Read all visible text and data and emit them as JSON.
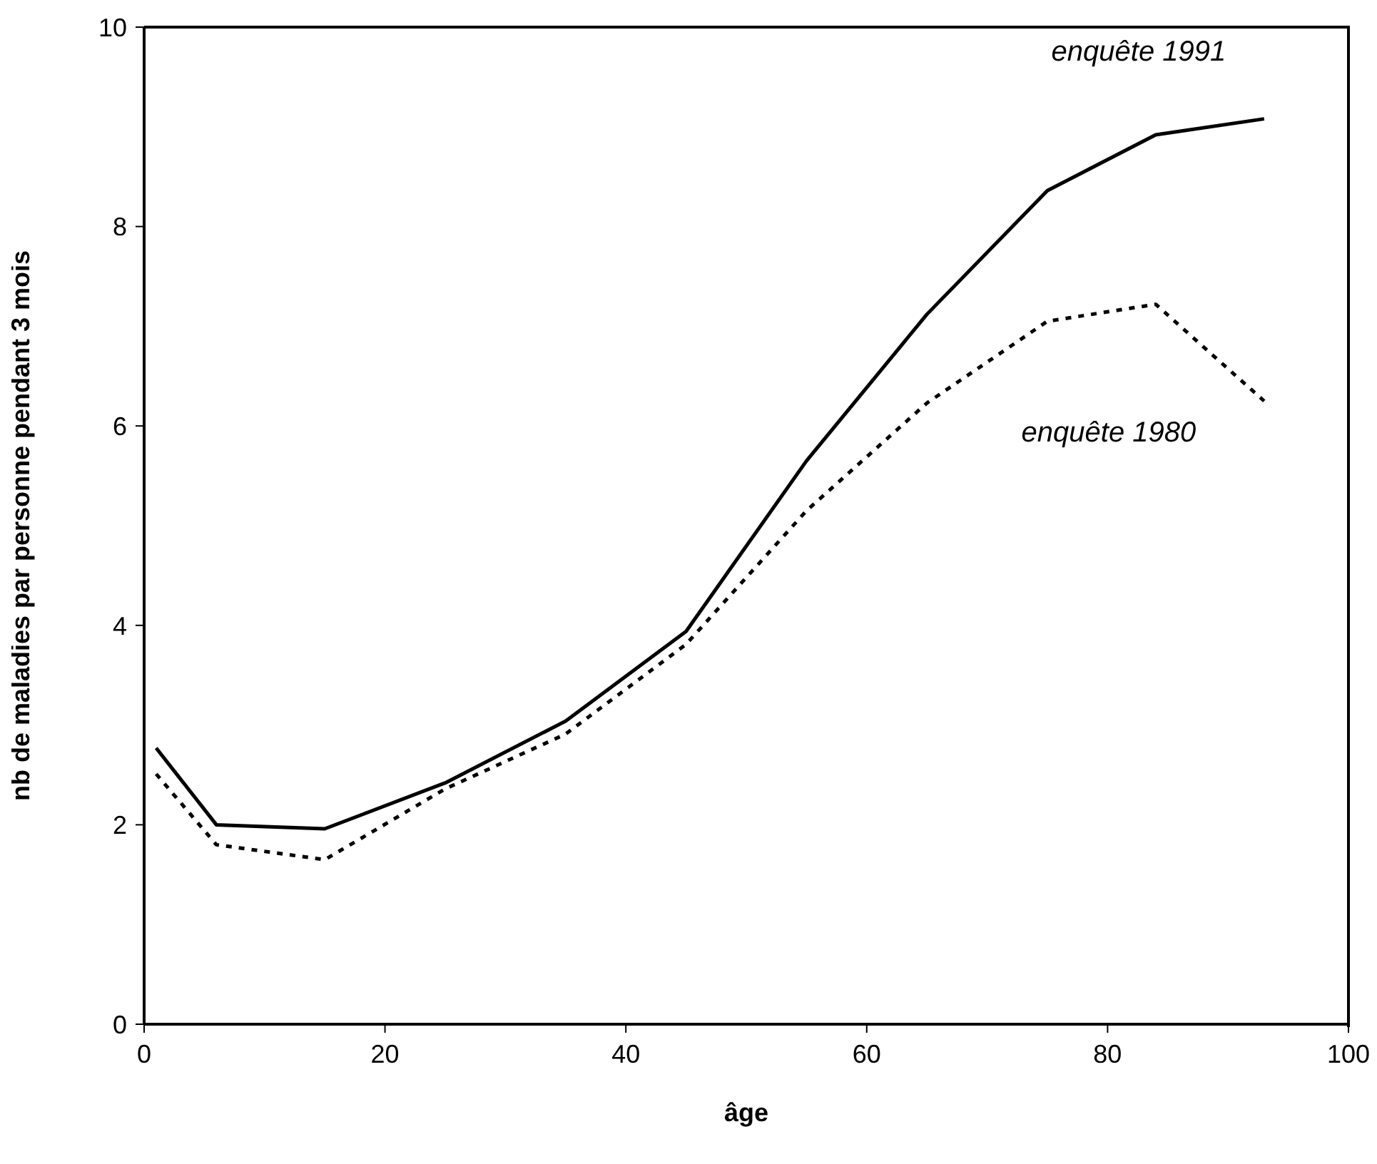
{
  "chart_data": {
    "type": "line",
    "xlabel": "âge",
    "ylabel": "nb de maladies par personne pendant 3 mois",
    "x": [
      1,
      6,
      15,
      25,
      35,
      45,
      55,
      65,
      75,
      84,
      93
    ],
    "series": [
      {
        "name": "enquête 1991",
        "color": "#000000",
        "line_style": "solid",
        "values": [
          2.77,
          2.0,
          1.96,
          2.42,
          3.04,
          3.94,
          5.65,
          7.12,
          8.36,
          8.92,
          9.08
        ]
      },
      {
        "name": "enquête 1980",
        "color": "#000000",
        "line_style": "dashed",
        "values": [
          2.51,
          1.8,
          1.65,
          2.36,
          2.91,
          3.81,
          5.15,
          6.23,
          7.05,
          7.22,
          6.25
        ]
      }
    ],
    "xlim": [
      0,
      100
    ],
    "xticks": [
      0,
      20,
      40,
      60,
      80,
      100
    ],
    "ylim": [
      0,
      10
    ],
    "yticks": [
      0,
      2,
      4,
      6,
      8,
      10
    ],
    "grid": false,
    "legend": false,
    "marker": "none"
  }
}
